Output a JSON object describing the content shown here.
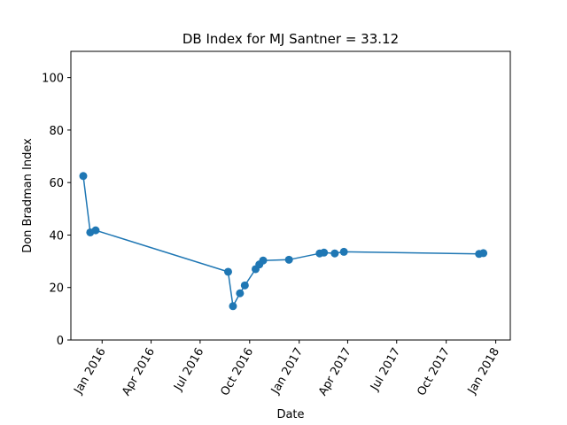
{
  "chart_data": {
    "type": "line",
    "title": "DB Index for MJ Santner = 33.12",
    "xlabel": "Date",
    "ylabel": "Don Bradman Index",
    "ylim": [
      0,
      110
    ],
    "xlim": [
      "2015-11-04",
      "2018-01-28"
    ],
    "yticks": [
      0,
      20,
      40,
      60,
      80,
      100
    ],
    "xticks": [
      {
        "date": "2016-01-01",
        "label": "Jan 2016"
      },
      {
        "date": "2016-04-01",
        "label": "Apr 2016"
      },
      {
        "date": "2016-07-01",
        "label": "Jul 2016"
      },
      {
        "date": "2016-10-01",
        "label": "Oct 2016"
      },
      {
        "date": "2017-01-01",
        "label": "Jan 2017"
      },
      {
        "date": "2017-04-01",
        "label": "Apr 2017"
      },
      {
        "date": "2017-07-01",
        "label": "Jul 2017"
      },
      {
        "date": "2017-10-01",
        "label": "Oct 2017"
      },
      {
        "date": "2018-01-01",
        "label": "Jan 2018"
      }
    ],
    "grid": false,
    "marker": "circle",
    "color": "#1f77b4",
    "series": [
      {
        "name": "",
        "points": [
          {
            "x": "2015-11-27",
            "y": 62.5
          },
          {
            "x": "2015-12-10",
            "y": 41.0
          },
          {
            "x": "2015-12-20",
            "y": 41.8
          },
          {
            "x": "2016-08-22",
            "y": 26.0
          },
          {
            "x": "2016-08-31",
            "y": 12.9
          },
          {
            "x": "2016-09-13",
            "y": 17.8
          },
          {
            "x": "2016-09-22",
            "y": 20.8
          },
          {
            "x": "2016-10-12",
            "y": 27.0
          },
          {
            "x": "2016-10-19",
            "y": 28.8
          },
          {
            "x": "2016-10-26",
            "y": 30.3
          },
          {
            "x": "2016-12-13",
            "y": 30.6
          },
          {
            "x": "2017-02-08",
            "y": 33.0
          },
          {
            "x": "2017-02-16",
            "y": 33.3
          },
          {
            "x": "2017-03-08",
            "y": 33.0
          },
          {
            "x": "2017-03-25",
            "y": 33.6
          },
          {
            "x": "2017-12-01",
            "y": 32.8
          },
          {
            "x": "2017-12-09",
            "y": 33.1
          }
        ]
      }
    ]
  }
}
